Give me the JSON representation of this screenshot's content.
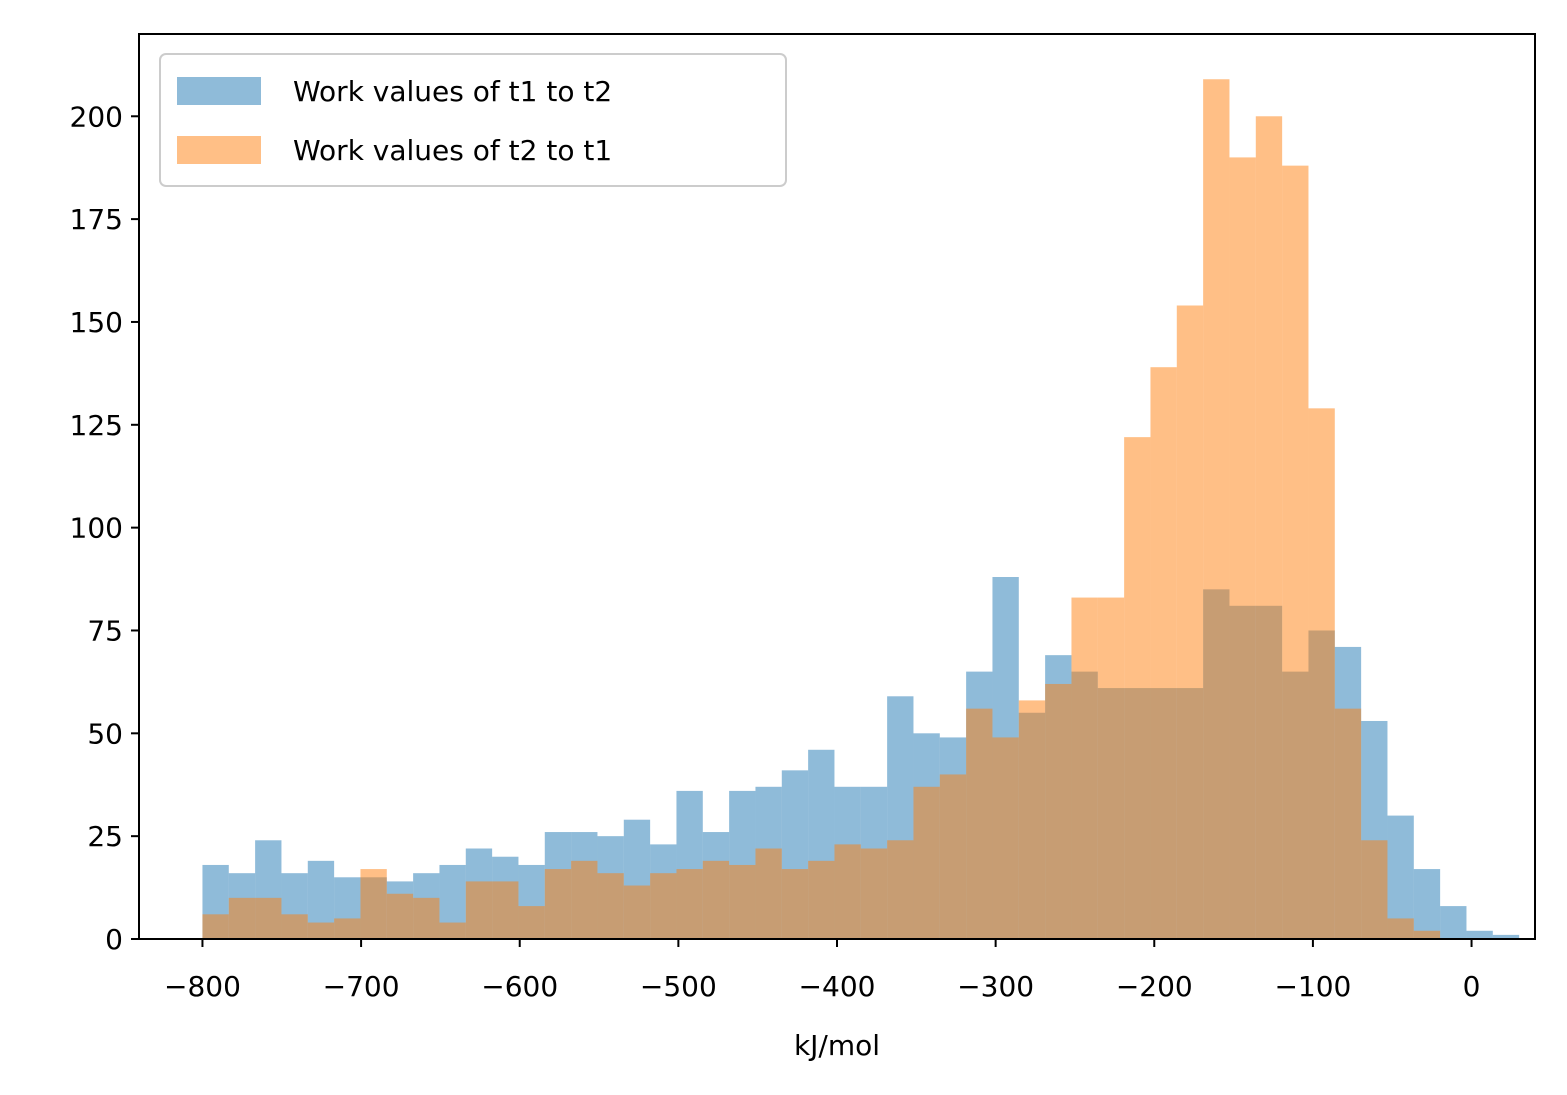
{
  "chart_data": {
    "type": "bar",
    "subtype": "overlapping-histogram",
    "title": "",
    "xlabel": "kJ/mol",
    "ylabel": "",
    "xlim": [
      -840,
      40
    ],
    "ylim": [
      0,
      220
    ],
    "xticks": [
      -800,
      -700,
      -600,
      -500,
      -400,
      -300,
      -200,
      -100,
      0
    ],
    "xtick_labels": [
      "−800",
      "−700",
      "−600",
      "−500",
      "−400",
      "−300",
      "−200",
      "−100",
      "0"
    ],
    "yticks": [
      0,
      25,
      50,
      75,
      100,
      125,
      150,
      175,
      200
    ],
    "ytick_labels": [
      "0",
      "25",
      "50",
      "75",
      "100",
      "125",
      "150",
      "175",
      "200"
    ],
    "bin_start": -800,
    "bin_width": 16.6,
    "grid": false,
    "legend_position": "upper-left",
    "series": [
      {
        "name": "Work values of t1 to t2",
        "color": "#1f77b4",
        "alpha": 0.5,
        "values": [
          18,
          16,
          24,
          16,
          19,
          15,
          15,
          14,
          16,
          18,
          22,
          20,
          18,
          26,
          26,
          25,
          29,
          23,
          36,
          26,
          36,
          37,
          41,
          46,
          37,
          37,
          59,
          50,
          49,
          65,
          88,
          55,
          69,
          65,
          61,
          61,
          61,
          61,
          85,
          81,
          81,
          65,
          75,
          71,
          53,
          30,
          17,
          8,
          2,
          1
        ]
      },
      {
        "name": "Work values of t2 to t1",
        "color": "#ff7f0e",
        "alpha": 0.5,
        "values": [
          6,
          10,
          10,
          6,
          4,
          5,
          17,
          11,
          10,
          4,
          14,
          14,
          8,
          17,
          19,
          16,
          13,
          16,
          17,
          19,
          18,
          22,
          17,
          19,
          23,
          22,
          24,
          37,
          40,
          56,
          49,
          58,
          62,
          83,
          83,
          122,
          139,
          154,
          209,
          190,
          200,
          188,
          129,
          56,
          24,
          5,
          2,
          0,
          0,
          0
        ]
      }
    ]
  }
}
